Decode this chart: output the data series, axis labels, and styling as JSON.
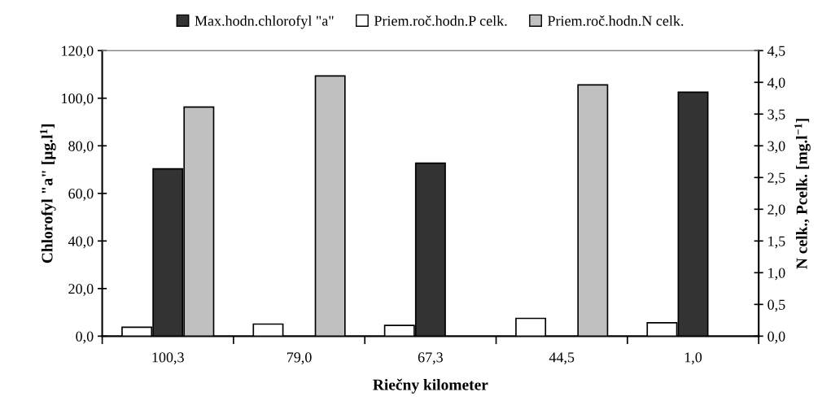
{
  "chart_data": {
    "type": "bar",
    "categories": [
      "100,3",
      "79,0",
      "67,3",
      "44,5",
      "1,0"
    ],
    "xlabel": "Riečny kilometer",
    "ylabel": "Chlorofyl \"a\" [µg.l$^{1}$]",
    "y2label": "N celk., Pcelk. [mg.l$^{−1}$]",
    "series": [
      {
        "name": "Max.hodn.chlorofyl \"a\"",
        "color": "#333333",
        "values": [
          70.3,
          null,
          72.7,
          null,
          102.5
        ]
      },
      {
        "name": "Priem.roč.hodn.P celk.",
        "color": "#ffffff",
        "axis": "y2",
        "values": [
          0.14,
          0.19,
          0.17,
          0.28,
          0.21
        ]
      },
      {
        "name": "Priem.roč.hodn.N celk.",
        "color": "#c0c0c0",
        "axis": "y2",
        "values": [
          3.61,
          4.1,
          null,
          3.96,
          null
        ]
      }
    ],
    "ylim": [
      0,
      120
    ],
    "yticks": [
      {
        "value": 0,
        "label": "0,0"
      },
      {
        "value": 20,
        "label": "20,0"
      },
      {
        "value": 40,
        "label": "40,0"
      },
      {
        "value": 60,
        "label": "60,0"
      },
      {
        "value": 80,
        "label": "80,0"
      },
      {
        "value": 100,
        "label": "100,0"
      },
      {
        "value": 120,
        "label": "120,0"
      }
    ],
    "y2lim": [
      0,
      4.5
    ],
    "y2ticks": [
      {
        "value": 0,
        "label": "0,0"
      },
      {
        "value": 0.5,
        "label": "0,5"
      },
      {
        "value": 1,
        "label": "1,0"
      },
      {
        "value": 1.5,
        "label": "1,5"
      },
      {
        "value": 2,
        "label": "2,0"
      },
      {
        "value": 2.5,
        "label": "2,5"
      },
      {
        "value": 3,
        "label": "3,0"
      },
      {
        "value": 3.5,
        "label": "3,5"
      },
      {
        "value": 4,
        "label": "4,0"
      },
      {
        "value": 4.5,
        "label": "4,5"
      }
    ],
    "grid": false,
    "legend": "top"
  }
}
